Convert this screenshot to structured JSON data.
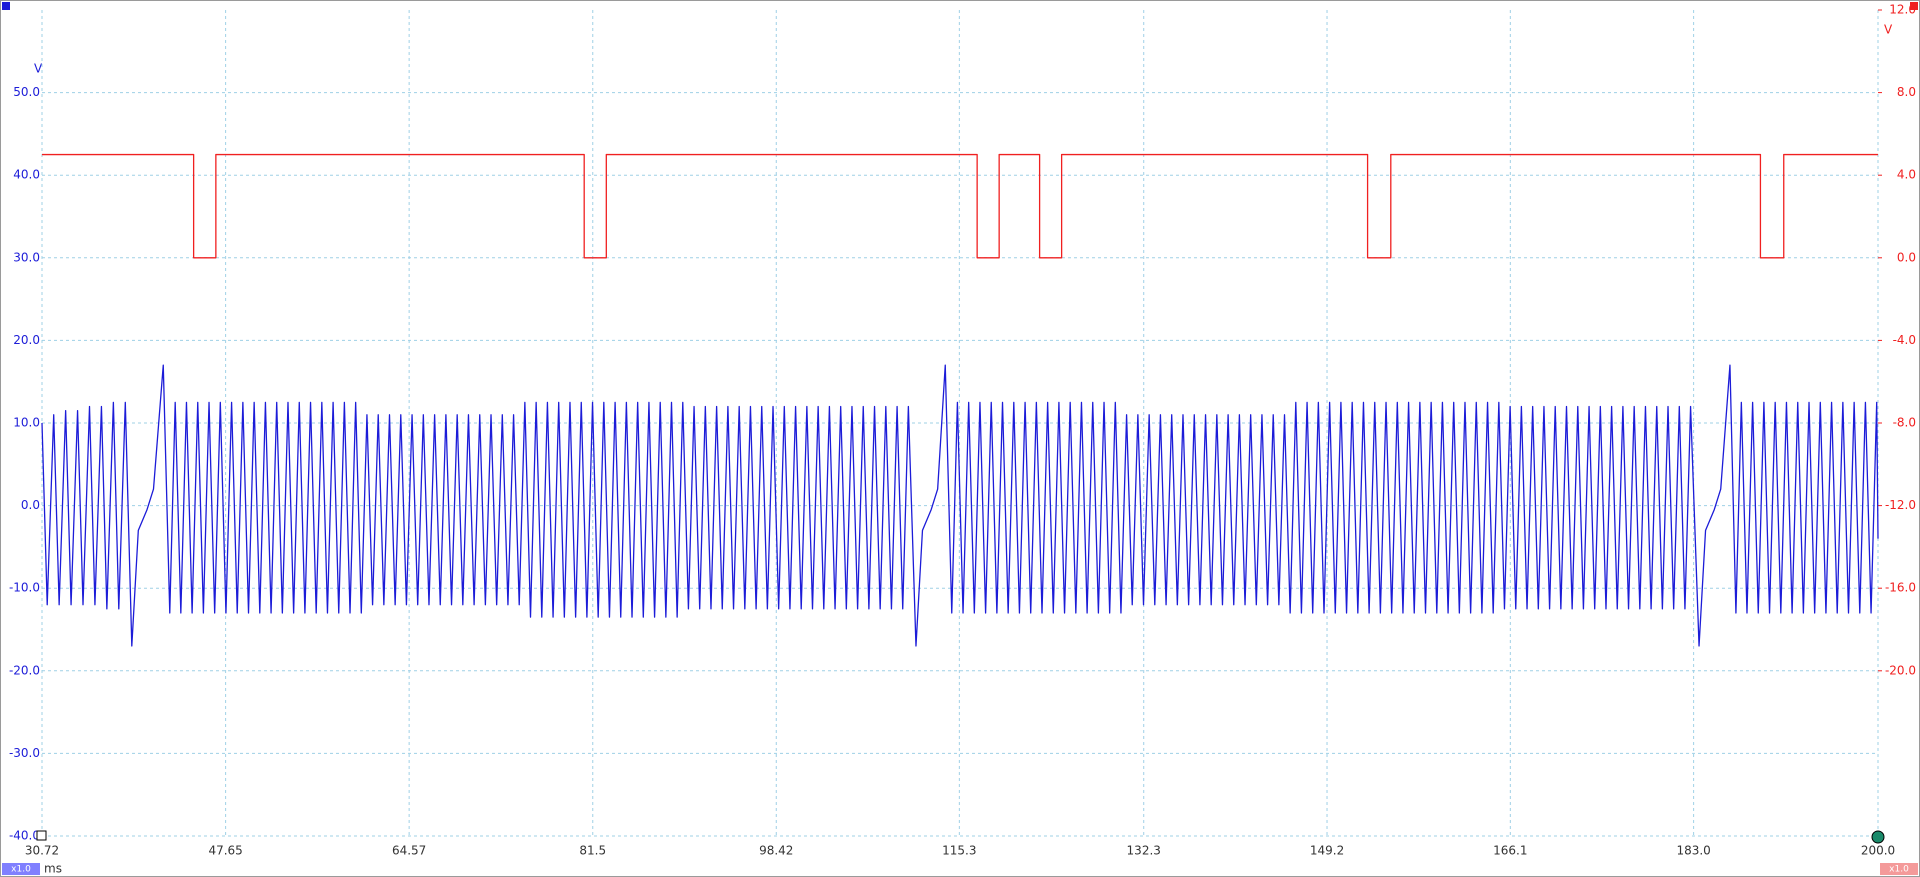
{
  "chart_data": {
    "type": "line",
    "x_unit": "ms",
    "y_unit": "V",
    "y2_unit": "V",
    "xlim": [
      30.72,
      200.0
    ],
    "xticks": [
      30.72,
      47.65,
      64.57,
      81.5,
      98.42,
      115.3,
      132.3,
      149.2,
      166.1,
      {
        "value": 183.0,
        "label": "183.0"
      },
      {
        "value": 200.0,
        "label": "200.0"
      }
    ],
    "ylim": [
      -40,
      60
    ],
    "yticks": [
      {
        "value": 50,
        "label": "50.0"
      },
      {
        "value": 40,
        "label": "40.0"
      },
      {
        "value": 30,
        "label": "30.0"
      },
      {
        "value": 20,
        "label": "20.0"
      },
      {
        "value": 10,
        "label": "10.0"
      },
      {
        "value": 0,
        "label": "0.0"
      },
      {
        "value": -10,
        "label": "-10.0"
      },
      {
        "value": -20,
        "label": "-20.0"
      },
      {
        "value": -30,
        "label": "-30.0"
      },
      {
        "value": -40,
        "label": "-40.0"
      }
    ],
    "y2lim": [
      -28,
      12
    ],
    "y2ticks": [
      {
        "value": 12,
        "label": "12.0"
      },
      {
        "value": 8,
        "label": "8.0"
      },
      {
        "value": 4,
        "label": "4.0"
      },
      {
        "value": 0,
        "label": "0.0"
      },
      {
        "value": -4,
        "label": "-4.0"
      },
      {
        "value": -8,
        "label": "-8.0"
      },
      {
        "value": -12,
        "label": "-12.0"
      },
      {
        "value": -16,
        "label": "-16.0"
      },
      {
        "value": -20,
        "label": "-20.0"
      }
    ],
    "grid": true,
    "series": [
      {
        "color": "#1c1cd8",
        "scale_label": "x1.0",
        "x": [
          30.72,
          31.2,
          31.8,
          32.3,
          32.9,
          33.4,
          34.0,
          34.5,
          35.1,
          35.6,
          36.2,
          36.7,
          37.3,
          37.8,
          38.4,
          39.0,
          39.6,
          40.4,
          41.0,
          41.9,
          42.5,
          43.0,
          43.52,
          44.04,
          44.56,
          45.08,
          45.6,
          46.12,
          46.64,
          47.16,
          47.68,
          48.2,
          48.72,
          49.24,
          49.76,
          50.28,
          50.8,
          51.32,
          51.84,
          52.36,
          52.88,
          53.4,
          53.92,
          54.44,
          54.96,
          55.48,
          56,
          56.52,
          57.04,
          57.56,
          58.08,
          58.6,
          59.12,
          59.64,
          60.16,
          60.68,
          61.2,
          61.72,
          62.24,
          62.76,
          63.28,
          63.8,
          64.32,
          64.84,
          65.36,
          65.88,
          66.4,
          66.92,
          67.44,
          67.96,
          68.48,
          69,
          69.52,
          70.04,
          70.56,
          71.08,
          71.6,
          72.12,
          72.64,
          73.16,
          73.68,
          74.2,
          74.72,
          75.24,
          75.76,
          76.28,
          76.8,
          77.32,
          77.84,
          78.36,
          78.88,
          79.4,
          79.92,
          80.44,
          80.96,
          81.48,
          82,
          82.52,
          83.04,
          83.56,
          84.08,
          84.6,
          85.12,
          85.64,
          86.16,
          86.68,
          87.2,
          87.72,
          88.24,
          88.76,
          89.28,
          89.8,
          90.32,
          90.84,
          91.36,
          91.88,
          92.4,
          92.92,
          93.44,
          93.96,
          94.48,
          95,
          95.52,
          96.04,
          96.56,
          97.08,
          97.6,
          98.12,
          98.64,
          99.16,
          99.68,
          100.2,
          100.72,
          101.24,
          101.76,
          102.28,
          102.8,
          103.32,
          103.84,
          104.36,
          104.88,
          105.4,
          105.92,
          106.44,
          106.96,
          107.48,
          108,
          108.52,
          109.04,
          109.56,
          110.08,
          110.6,
          111.3,
          111.9,
          112.7,
          113.3,
          114.0,
          114.6,
          115.12,
          115.64,
          116.16,
          116.68,
          117.2,
          117.72,
          118.24,
          118.76,
          119.28,
          119.8,
          120.32,
          120.84,
          121.36,
          121.88,
          122.4,
          122.92,
          123.44,
          123.96,
          124.48,
          125,
          125.52,
          126.04,
          126.56,
          127.08,
          127.6,
          128.12,
          128.64,
          129.16,
          129.68,
          130.2,
          130.72,
          131.24,
          131.76,
          132.28,
          132.8,
          133.32,
          133.84,
          134.36,
          134.88,
          135.4,
          135.92,
          136.44,
          136.96,
          137.48,
          138,
          138.52,
          139.04,
          139.56,
          140.08,
          140.6,
          141.12,
          141.64,
          142.16,
          142.68,
          143.2,
          143.72,
          144.24,
          144.76,
          145.28,
          145.8,
          146.32,
          146.84,
          147.36,
          147.88,
          148.4,
          148.92,
          149.44,
          149.96,
          150.48,
          151,
          151.52,
          152.04,
          152.56,
          153.08,
          153.6,
          154.12,
          154.64,
          155.16,
          155.68,
          156.2,
          156.72,
          157.24,
          157.76,
          158.28,
          158.8,
          159.32,
          159.84,
          160.36,
          160.88,
          161.4,
          161.92,
          162.44,
          162.96,
          163.48,
          164,
          164.52,
          165.04,
          165.56,
          166.08,
          166.6,
          167.12,
          167.64,
          168.16,
          168.68,
          169.2,
          169.72,
          170.24,
          170.76,
          171.28,
          171.8,
          172.32,
          172.84,
          173.36,
          173.88,
          174.4,
          174.92,
          175.44,
          175.96,
          176.48,
          177,
          177.52,
          178.04,
          178.56,
          179.08,
          179.6,
          180.12,
          180.64,
          181.16,
          181.68,
          182.2,
          182.72,
          183.5,
          184.1,
          184.9,
          185.5,
          186.35,
          186.9,
          187.4,
          187.92,
          188.44,
          188.96,
          189.48,
          190,
          190.52,
          191.04,
          191.56,
          192.08,
          192.6,
          193.12,
          193.64,
          194.16,
          194.68,
          195.2,
          195.72,
          196.24,
          196.76,
          197.28,
          197.8,
          198.32,
          198.84,
          199.36,
          199.88,
          200.0
        ],
        "values": [
          10,
          -12,
          11,
          -12,
          11.5,
          -12,
          11.5,
          -12,
          12,
          -12,
          12,
          -12.5,
          12.5,
          -12.5,
          12.5,
          -17,
          -3,
          -0.5,
          2,
          17,
          -13,
          12.5,
          -13,
          12.5,
          -13,
          12.5,
          -13,
          12.5,
          -13,
          12.5,
          -13,
          12.5,
          -13,
          12.5,
          -13,
          12.5,
          -13,
          12.5,
          -13,
          12.5,
          -13,
          12.5,
          -13,
          12.5,
          -13,
          12.5,
          -13,
          12.5,
          -13,
          12.5,
          -13,
          12.5,
          -13,
          12.5,
          -13,
          11,
          -12,
          11,
          -12,
          11,
          -12,
          11,
          -12,
          11,
          -12,
          11,
          -12,
          11,
          -12,
          11,
          -12,
          11,
          -12,
          11,
          -12,
          11,
          -12,
          11,
          -12,
          11,
          -12,
          11,
          -12,
          12.5,
          -13.5,
          12.5,
          -13.5,
          12.5,
          -13.5,
          12.5,
          -13.5,
          12.5,
          -13.5,
          12.5,
          -13.5,
          12.5,
          -13.5,
          12.5,
          -13.5,
          12.5,
          -13.5,
          12.5,
          -13.5,
          12.5,
          -13.5,
          12.5,
          -13.5,
          12.5,
          -13.5,
          12.5,
          -13.5,
          12.5,
          -12.5,
          12,
          -12.5,
          12,
          -12.5,
          12,
          -12.5,
          12,
          -12.5,
          12,
          -12.5,
          12,
          -12.5,
          12,
          -12.5,
          12,
          -12.5,
          12,
          -12.5,
          12,
          -12.5,
          12,
          -12.5,
          12,
          -12.5,
          12,
          -12.5,
          12,
          -12.5,
          12,
          -12.5,
          12,
          -12.5,
          12,
          -12.5,
          12,
          -12.5,
          12,
          -12.5,
          12,
          -17,
          -3,
          -0.5,
          2,
          17,
          -13,
          12.5,
          -13,
          12.5,
          -13,
          12.5,
          -13,
          12.5,
          -13,
          12.5,
          -13,
          12.5,
          -13,
          12.5,
          -13,
          12.5,
          -13,
          12.5,
          -13,
          12.5,
          -13,
          12.5,
          -13,
          12.5,
          -13,
          12.5,
          -13,
          12.5,
          -13,
          12.5,
          -13,
          11,
          -12,
          11,
          -12,
          11,
          -12,
          11,
          -12,
          11,
          -12,
          11,
          -12,
          11,
          -12,
          11,
          -12,
          11,
          -12,
          11,
          -12,
          11,
          -12,
          11,
          -12,
          11,
          -12,
          11,
          -12,
          11,
          -13,
          12.5,
          -13,
          12.5,
          -13,
          12.5,
          -13,
          12.5,
          -13,
          12.5,
          -13,
          12.5,
          -13,
          12.5,
          -13,
          12.5,
          -13,
          12.5,
          -13,
          12.5,
          -13,
          12.5,
          -13,
          12.5,
          -13,
          12.5,
          -13,
          12.5,
          -13,
          12.5,
          -13,
          12.5,
          -13,
          12.5,
          -13,
          12.5,
          -13,
          12.5,
          -12.5,
          12,
          -12.5,
          12,
          -12.5,
          12,
          -12.5,
          12,
          -12.5,
          12,
          -12.5,
          12,
          -12.5,
          12,
          -12.5,
          12,
          -12.5,
          12,
          -12.5,
          12,
          -12.5,
          12,
          -12.5,
          12,
          -12.5,
          12,
          -12.5,
          12,
          -12.5,
          12,
          -12.5,
          12,
          -12.5,
          12,
          -17,
          -3,
          -0.5,
          2,
          17,
          -13,
          12.5,
          -13,
          12.5,
          -13,
          12.5,
          -13,
          12.5,
          -13,
          12.5,
          -13,
          12.5,
          -13,
          12.5,
          -13,
          12.5,
          -13,
          12.5,
          -13,
          12.5,
          -13,
          12.5,
          -13,
          12.5,
          -13,
          12.5,
          -4
        ]
      },
      {
        "color": "#f02020",
        "axis": "y2",
        "scale_label": "x1.0",
        "x": [
          30.72,
          44.7,
          44.7,
          46.75,
          46.75,
          80.71,
          80.71,
          82.75,
          82.75,
          116.94,
          116.94,
          118.97,
          118.97,
          122.7,
          122.7,
          124.73,
          124.73,
          152.94,
          152.94,
          155.08,
          155.08,
          189.16,
          189.16,
          191.31,
          191.31,
          200.0
        ],
        "values": [
          5,
          5,
          0,
          0,
          5,
          5,
          0,
          0,
          5,
          5,
          0,
          0,
          5,
          5,
          0,
          0,
          5,
          5,
          0,
          0,
          5,
          5,
          0,
          0,
          5,
          5
        ]
      }
    ]
  }
}
